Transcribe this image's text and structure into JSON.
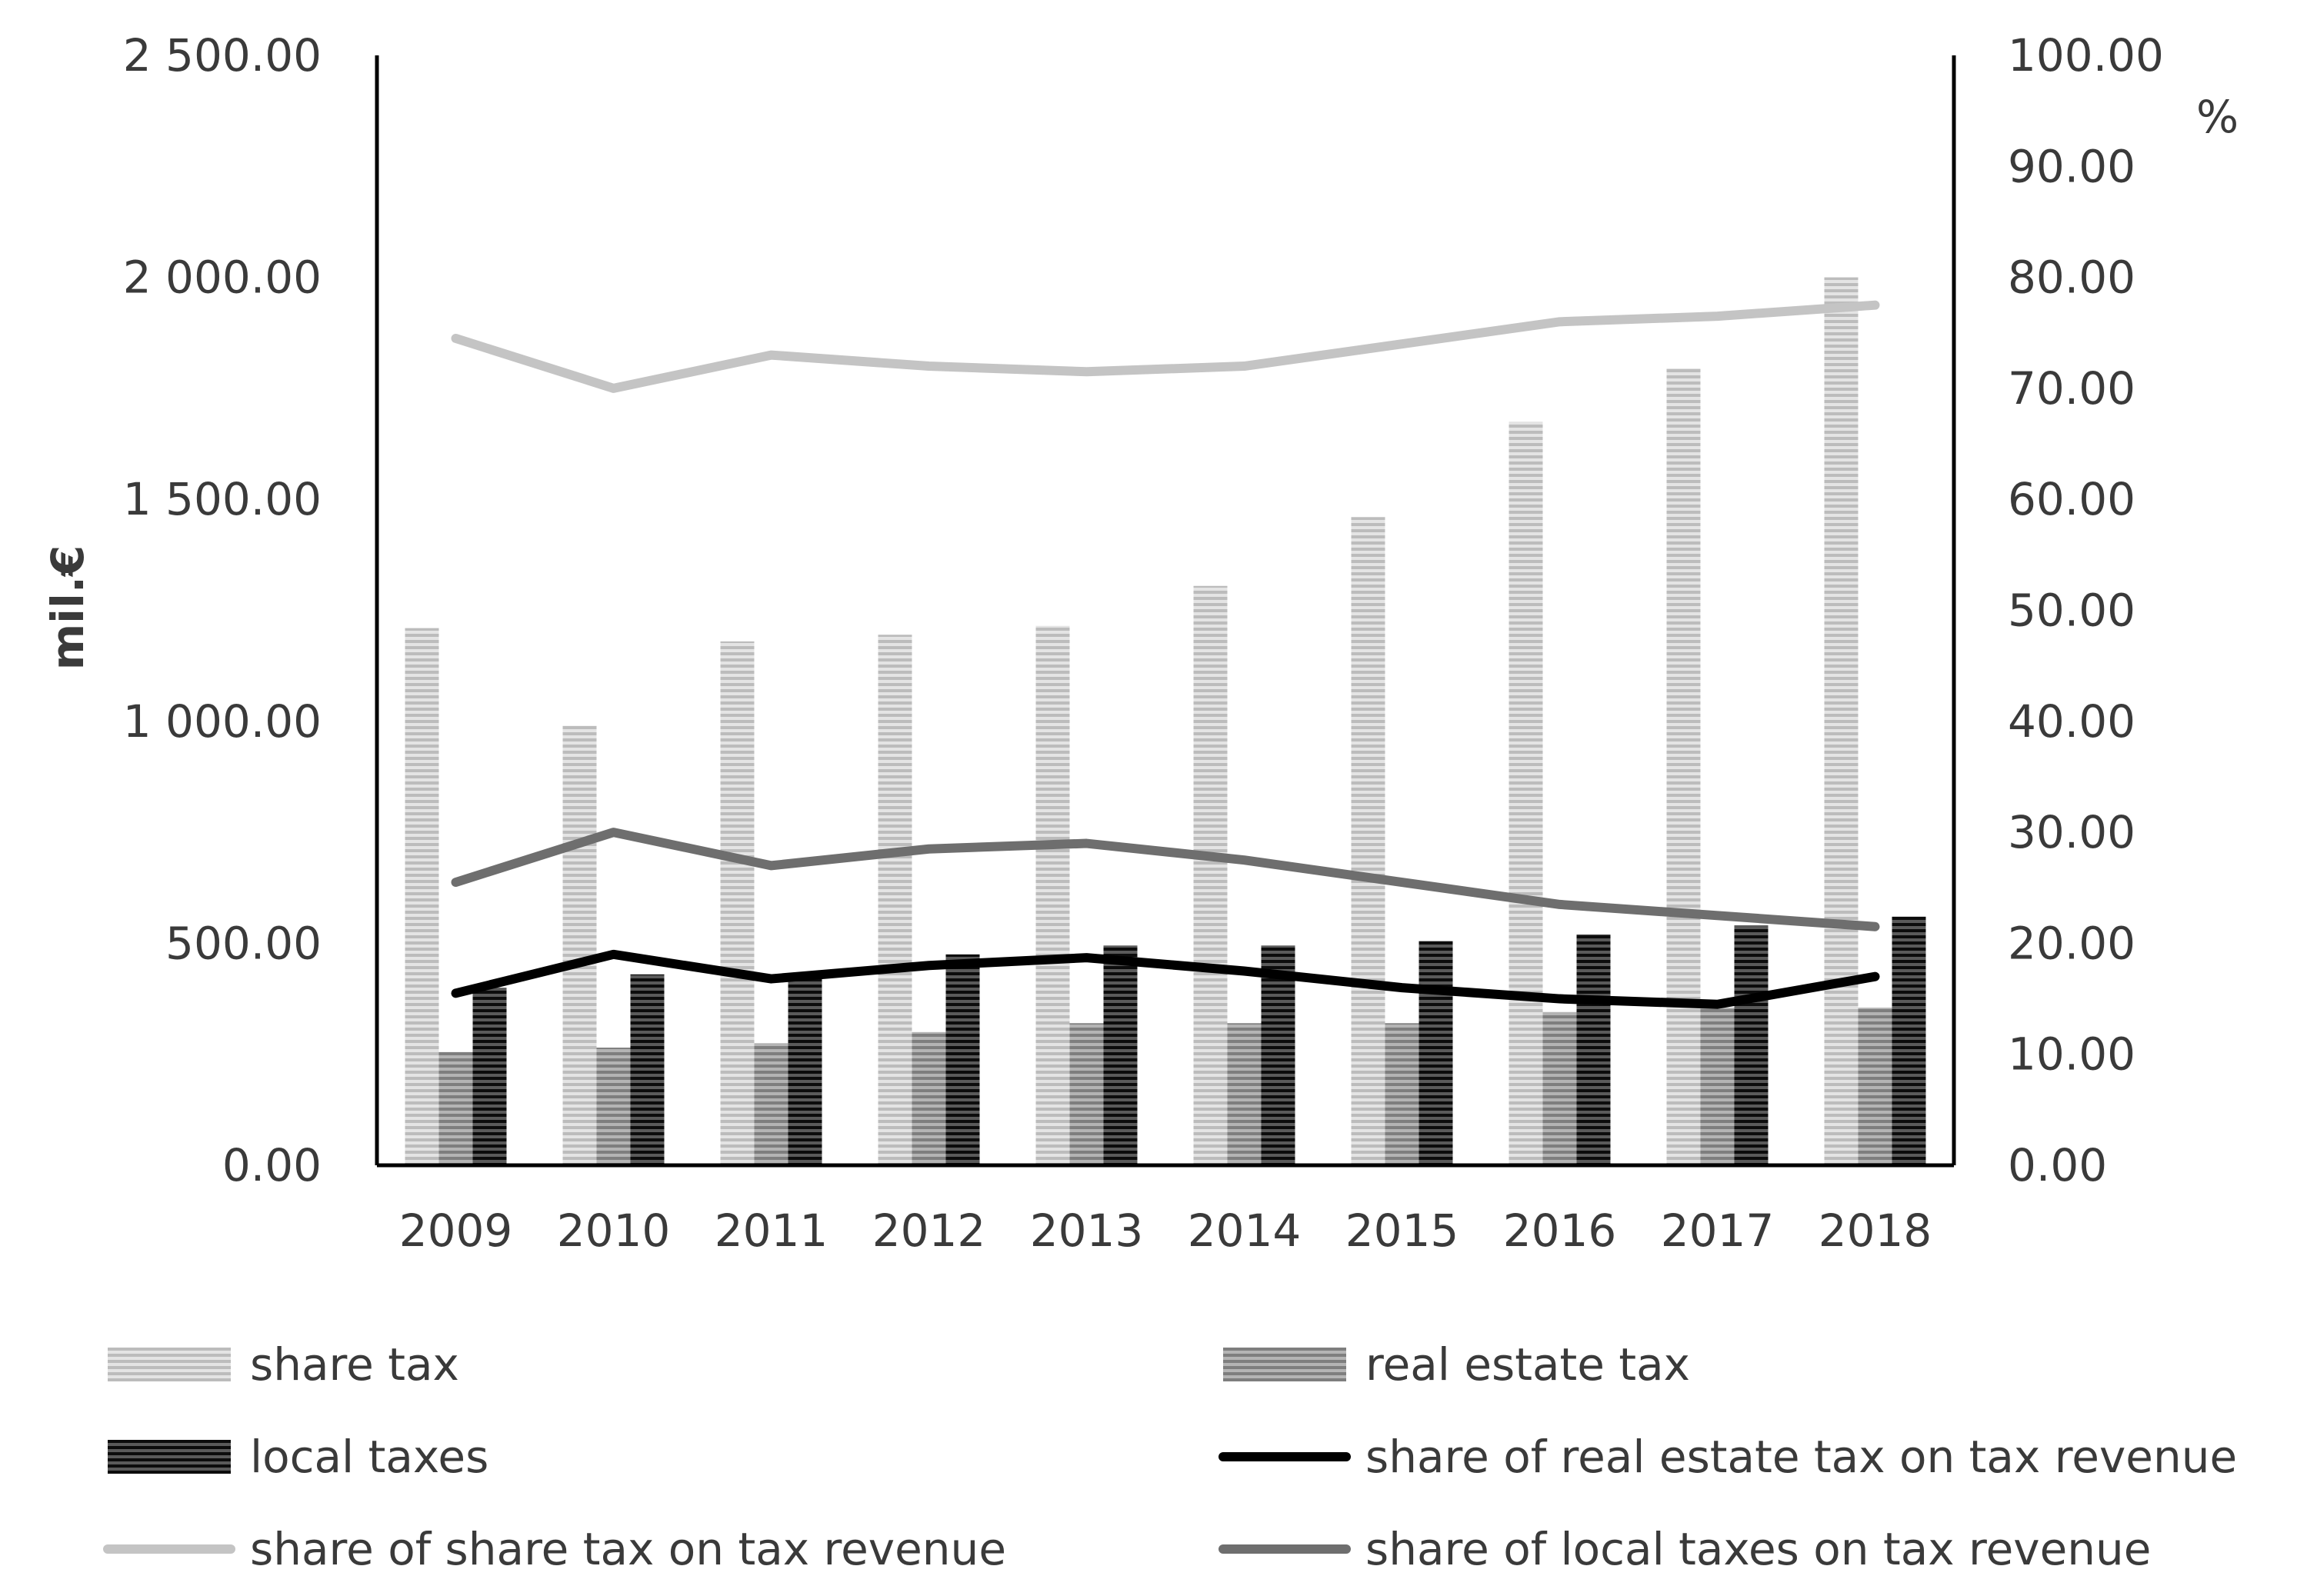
{
  "chart_data": {
    "type": "bar",
    "categories": [
      "2009",
      "2010",
      "2011",
      "2012",
      "2013",
      "2014",
      "2015",
      "2016",
      "2017",
      "2018"
    ],
    "y_left": {
      "label": "mil.€",
      "range": [
        0,
        2500
      ],
      "ticks": [
        "0.00",
        "500.00",
        "1 000.00",
        "1 500.00",
        "2 000.00",
        "2 500.00"
      ]
    },
    "y_right": {
      "label": "%",
      "range": [
        0,
        100
      ],
      "ticks": [
        "0.00",
        "10.00",
        "20.00",
        "30.00",
        "40.00",
        "50.00",
        "60.00",
        "70.00",
        "80.00",
        "90.00",
        "100.00"
      ]
    },
    "bar_series": [
      {
        "name": "share tax",
        "axis": "left",
        "color": "#c8c8c8",
        "values": [
          1210,
          990,
          1180,
          1195,
          1215,
          1305,
          1460,
          1675,
          1795,
          2000
        ]
      },
      {
        "name": "real estate tax",
        "axis": "left",
        "color": "#9a9a9a",
        "values": [
          255,
          265,
          275,
          300,
          320,
          320,
          320,
          345,
          355,
          355
        ]
      },
      {
        "name": "local taxes",
        "axis": "left",
        "color": "#1e1e1e",
        "values": [
          400,
          430,
          430,
          475,
          495,
          495,
          505,
          520,
          540,
          560
        ]
      }
    ],
    "line_series": [
      {
        "name": "share of real estate tax on tax revenue",
        "axis": "right",
        "color": "#000000",
        "values": [
          15.5,
          19.0,
          16.8,
          18.0,
          18.7,
          17.5,
          16.0,
          15.0,
          14.5,
          17.0
        ]
      },
      {
        "name": "share of share tax on tax revenue",
        "axis": "right",
        "color": "#c4c4c4",
        "values": [
          74.5,
          70.0,
          73.0,
          72.0,
          71.5,
          72.0,
          74.0,
          76.0,
          76.5,
          77.5
        ]
      },
      {
        "name": "share of local taxes on tax revenue",
        "axis": "right",
        "color": "#6e6e6e",
        "values": [
          25.5,
          30.0,
          27.0,
          28.5,
          29.0,
          27.5,
          25.5,
          23.5,
          22.5,
          21.5
        ]
      }
    ],
    "legend": [
      {
        "label": "share tax",
        "kind": "bar",
        "color": "#c8c8c8"
      },
      {
        "label": "real estate tax",
        "kind": "bar",
        "color": "#9a9a9a"
      },
      {
        "label": "local taxes",
        "kind": "bar",
        "color": "#1e1e1e"
      },
      {
        "label": "share of real estate tax on tax revenue",
        "kind": "line",
        "color": "#000000"
      },
      {
        "label": "share of share tax on tax revenue",
        "kind": "line",
        "color": "#c4c4c4"
      },
      {
        "label": "share of local taxes on tax revenue",
        "kind": "line",
        "color": "#6e6e6e"
      }
    ],
    "legend_position": "bottom"
  }
}
